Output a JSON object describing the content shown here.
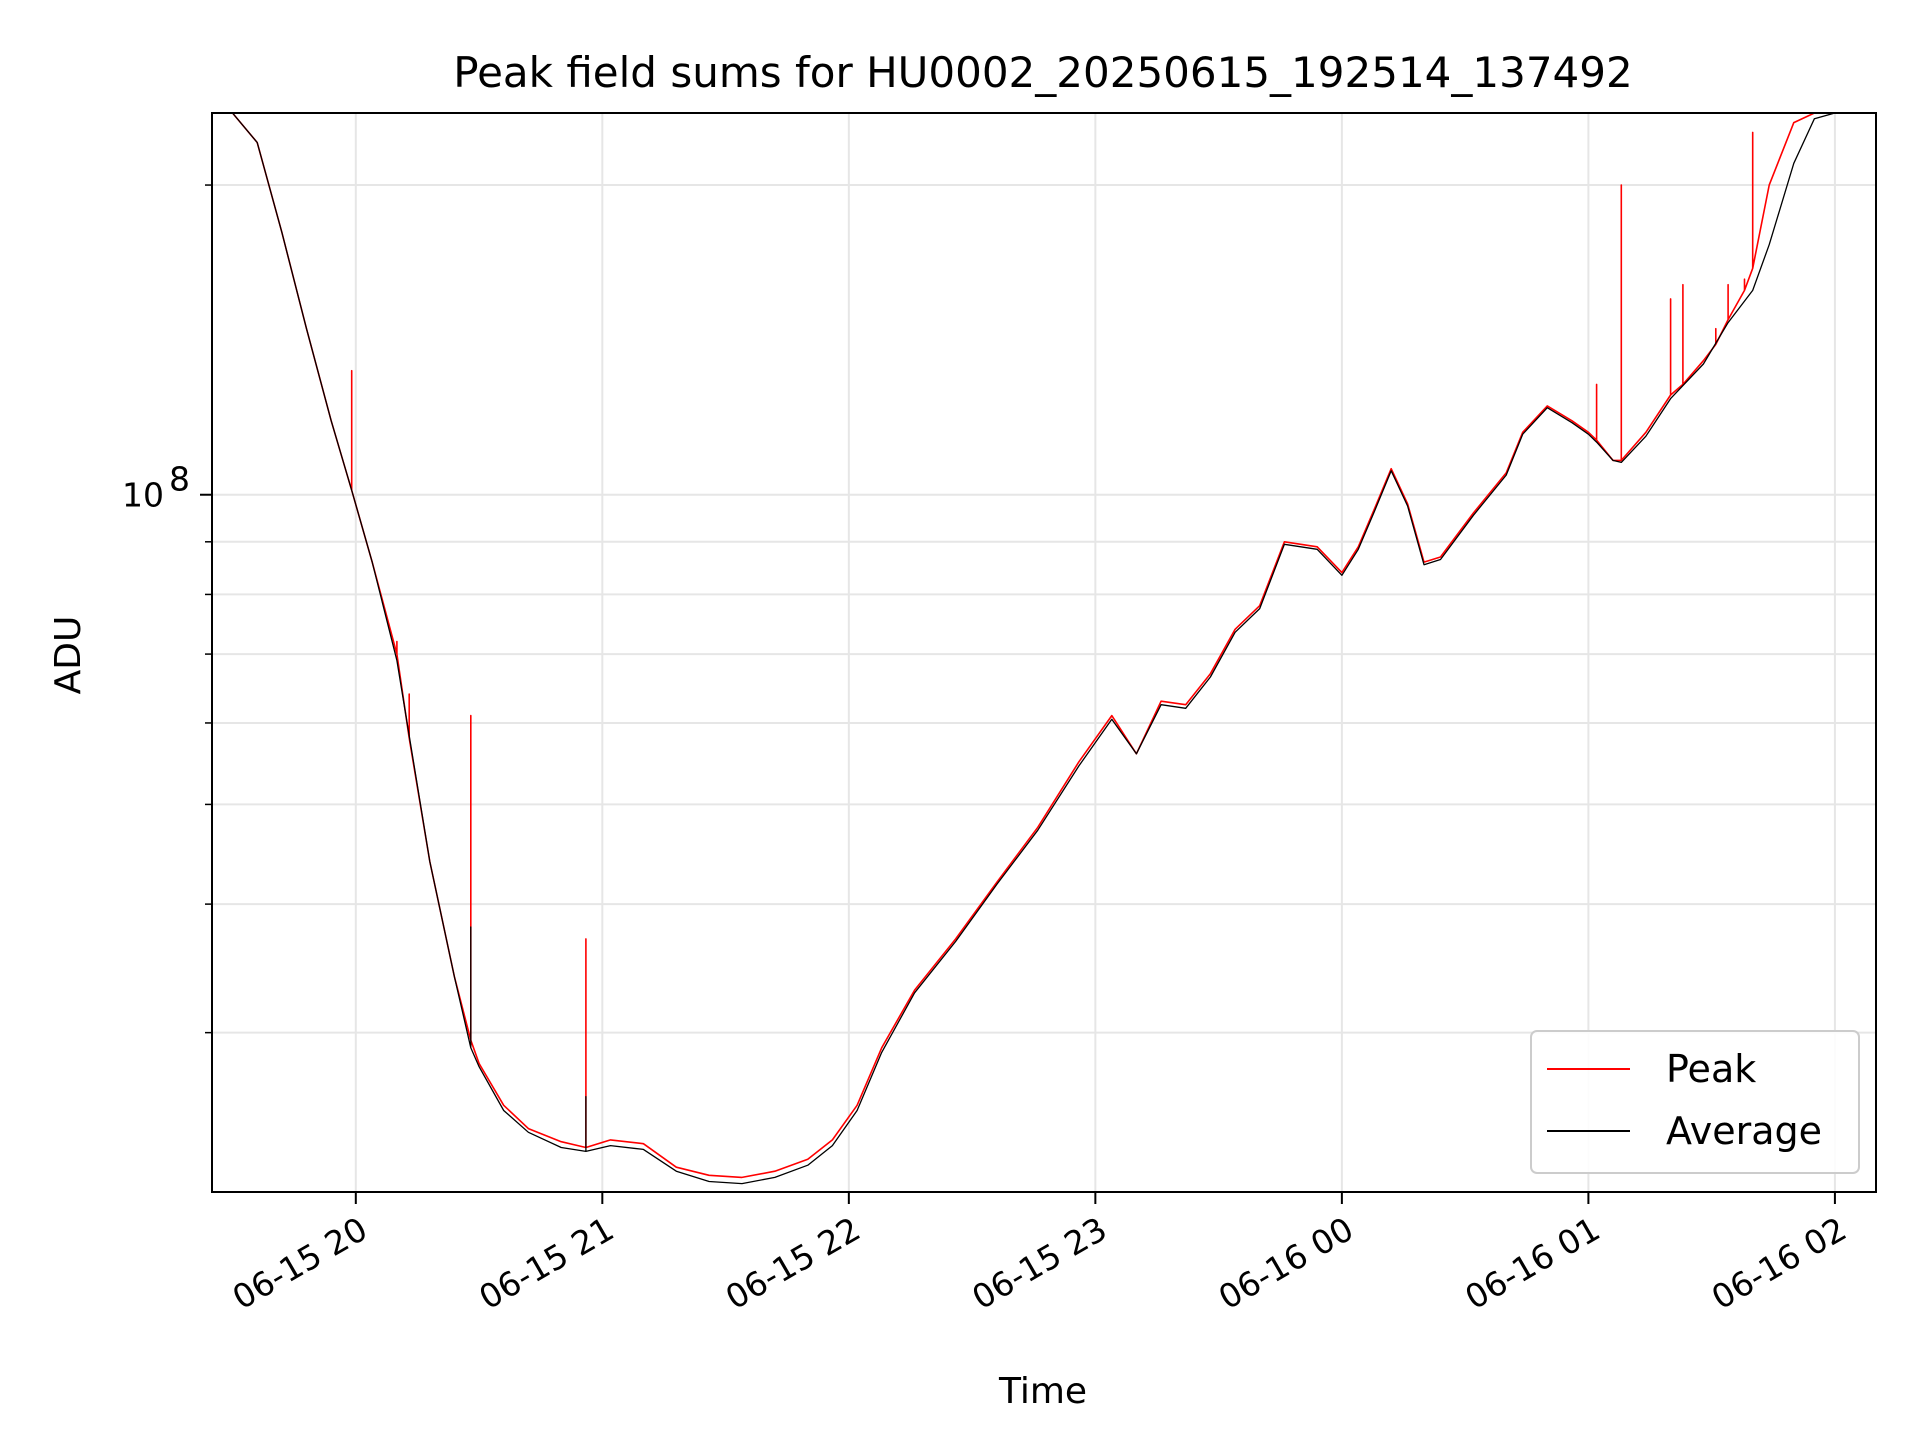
{
  "chart_data": {
    "type": "line",
    "title": "Peak field sums for HU0002_20250615_192514_137492",
    "xlabel": "Time",
    "ylabel": "ADU",
    "y_scale": "log",
    "ylim": [
      21000000,
      235000000
    ],
    "xlim": [
      "06-15 19:25",
      "06-16 02:10"
    ],
    "x_ticks": [
      {
        "value": "06-15 20:00",
        "label": "06-15 20"
      },
      {
        "value": "06-15 21:00",
        "label": "06-15 21"
      },
      {
        "value": "06-15 22:00",
        "label": "06-15 22"
      },
      {
        "value": "06-15 23:00",
        "label": "06-15 23"
      },
      {
        "value": "06-16 00:00",
        "label": "06-16 00"
      },
      {
        "value": "06-16 01:00",
        "label": "06-16 01"
      },
      {
        "value": "06-16 02:00",
        "label": "06-16 02"
      }
    ],
    "y_ticks": [
      {
        "value": 100000000,
        "label": "10",
        "exp": "8"
      }
    ],
    "grid": true,
    "legend": "lower-right",
    "series": [
      {
        "name": "Peak",
        "color": "#ff0000",
        "x": [
          "06-15 19:30",
          "06-15 19:36",
          "06-15 19:42",
          "06-15 19:48",
          "06-15 19:54",
          "06-15 19:59",
          "06-15 19:59",
          "06-15 19:59",
          "06-15 20:04",
          "06-15 20:10",
          "06-15 20:10",
          "06-15 20:10",
          "06-15 20:13",
          "06-15 20:13",
          "06-15 20:13",
          "06-15 20:18",
          "06-15 20:24",
          "06-15 20:28",
          "06-15 20:28",
          "06-15 20:28",
          "06-15 20:30",
          "06-15 20:36",
          "06-15 20:42",
          "06-15 20:50",
          "06-15 20:56",
          "06-15 20:56",
          "06-15 20:56",
          "06-15 21:02",
          "06-15 21:10",
          "06-15 21:18",
          "06-15 21:26",
          "06-15 21:34",
          "06-15 21:42",
          "06-15 21:50",
          "06-15 21:56",
          "06-15 22:02",
          "06-15 22:08",
          "06-15 22:16",
          "06-15 22:26",
          "06-15 22:36",
          "06-15 22:46",
          "06-15 22:56",
          "06-15 23:04",
          "06-15 23:10",
          "06-15 23:16",
          "06-15 23:22",
          "06-15 23:28",
          "06-15 23:34",
          "06-15 23:40",
          "06-15 23:46",
          "06-15 23:54",
          "06-16 00:00",
          "06-16 00:04",
          "06-16 00:08",
          "06-16 00:12",
          "06-16 00:16",
          "06-16 00:20",
          "06-16 00:24",
          "06-16 00:32",
          "06-16 00:40",
          "06-16 00:44",
          "06-16 00:50",
          "06-16 00:56",
          "06-16 01:00",
          "06-16 01:02",
          "06-16 01:02",
          "06-16 01:02",
          "06-16 01:06",
          "06-16 01:08",
          "06-16 01:08",
          "06-16 01:08",
          "06-16 01:14",
          "06-16 01:20",
          "06-16 01:20",
          "06-16 01:20",
          "06-16 01:23",
          "06-16 01:23",
          "06-16 01:23",
          "06-16 01:28",
          "06-16 01:31",
          "06-16 01:31",
          "06-16 01:31",
          "06-16 01:34",
          "06-16 01:34",
          "06-16 01:34",
          "06-16 01:38",
          "06-16 01:38",
          "06-16 01:38",
          "06-16 01:40",
          "06-16 01:40",
          "06-16 01:40",
          "06-16 01:44",
          "06-16 01:50",
          "06-16 01:55",
          "06-16 02:00"
        ],
        "y": [
          235000000,
          220000000,
          180000000,
          145000000,
          118000000,
          101000000,
          132000000,
          101000000,
          86000000,
          70000000,
          72000000,
          70000000,
          58000000,
          64000000,
          58000000,
          44000000,
          34000000,
          29500000,
          61000000,
          29500000,
          28000000,
          25500000,
          24200000,
          23500000,
          23200000,
          37000000,
          23200000,
          23600000,
          23400000,
          22200000,
          21800000,
          21700000,
          22000000,
          22600000,
          23600000,
          25500000,
          29000000,
          33000000,
          37000000,
          42000000,
          47500000,
          55000000,
          61000000,
          56000000,
          63000000,
          62500000,
          67000000,
          74000000,
          78000000,
          90000000,
          89000000,
          84000000,
          89000000,
          97000000,
          106000000,
          98000000,
          86000000,
          87000000,
          96000000,
          105000000,
          115000000,
          122000000,
          118000000,
          115000000,
          113000000,
          128000000,
          113000000,
          108000000,
          108000000,
          200000000,
          108000000,
          115000000,
          125000000,
          155000000,
          125000000,
          128000000,
          160000000,
          128000000,
          135000000,
          140000000,
          145000000,
          140000000,
          148000000,
          160000000,
          148000000,
          158000000,
          162000000,
          158000000,
          166000000,
          225000000,
          166000000,
          200000000,
          230000000,
          235000000,
          235000000
        ]
      },
      {
        "name": "Average",
        "color": "#000000",
        "x": [
          "06-15 19:30",
          "06-15 19:36",
          "06-15 19:42",
          "06-15 19:48",
          "06-15 19:54",
          "06-15 19:59",
          "06-15 20:04",
          "06-15 20:10",
          "06-15 20:18",
          "06-15 20:24",
          "06-15 20:28",
          "06-15 20:28",
          "06-15 20:28",
          "06-15 20:30",
          "06-15 20:36",
          "06-15 20:42",
          "06-15 20:50",
          "06-15 20:56",
          "06-15 20:56",
          "06-15 20:56",
          "06-15 21:02",
          "06-15 21:10",
          "06-15 21:18",
          "06-15 21:26",
          "06-15 21:34",
          "06-15 21:42",
          "06-15 21:50",
          "06-15 21:56",
          "06-15 22:02",
          "06-15 22:08",
          "06-15 22:16",
          "06-15 22:26",
          "06-15 22:36",
          "06-15 22:46",
          "06-15 22:56",
          "06-15 23:04",
          "06-15 23:10",
          "06-15 23:16",
          "06-15 23:22",
          "06-15 23:28",
          "06-15 23:34",
          "06-15 23:40",
          "06-15 23:46",
          "06-15 23:54",
          "06-16 00:00",
          "06-16 00:04",
          "06-16 00:08",
          "06-16 00:12",
          "06-16 00:16",
          "06-16 00:20",
          "06-16 00:24",
          "06-16 00:32",
          "06-16 00:40",
          "06-16 00:44",
          "06-16 00:50",
          "06-16 00:56",
          "06-16 01:00",
          "06-16 01:02",
          "06-16 01:06",
          "06-16 01:08",
          "06-16 01:14",
          "06-16 01:20",
          "06-16 01:28",
          "06-16 01:34",
          "06-16 01:40",
          "06-16 01:44",
          "06-16 01:50",
          "06-16 01:55",
          "06-16 02:00"
        ],
        "y": [
          235000000,
          220000000,
          180000000,
          145000000,
          118000000,
          101000000,
          86000000,
          69000000,
          44000000,
          34000000,
          29000000,
          38000000,
          29000000,
          27800000,
          25200000,
          24000000,
          23200000,
          23000000,
          26000000,
          23000000,
          23300000,
          23100000,
          22000000,
          21500000,
          21400000,
          21700000,
          22300000,
          23300000,
          25200000,
          28700000,
          32800000,
          36800000,
          41800000,
          47200000,
          54500000,
          60500000,
          56000000,
          62500000,
          62000000,
          66500000,
          73500000,
          77500000,
          89500000,
          88500000,
          83500000,
          88500000,
          96500000,
          105500000,
          97500000,
          85500000,
          86500000,
          95500000,
          104500000,
          114500000,
          121500000,
          117500000,
          114500000,
          112500000,
          108000000,
          107500000,
          114000000,
          124000000,
          134000000,
          147000000,
          158000000,
          175000000,
          210000000,
          232000000,
          235000000
        ]
      }
    ]
  }
}
